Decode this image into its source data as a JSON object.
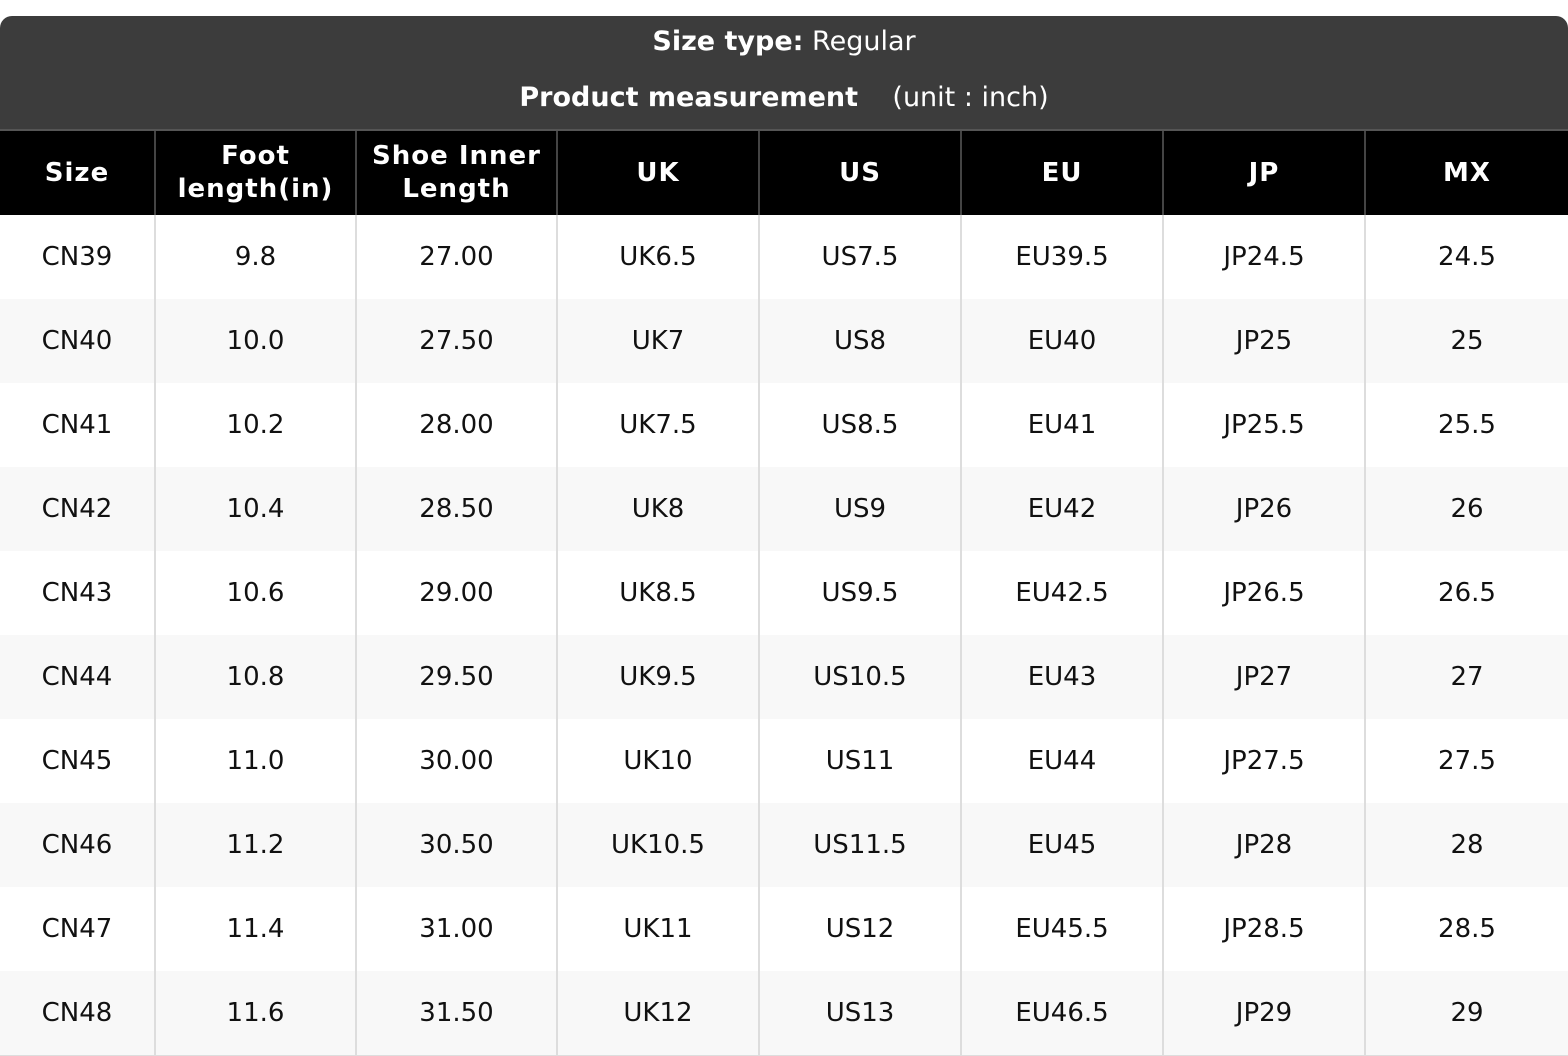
{
  "header": {
    "size_type_label": "Size type:",
    "size_type": "Regular",
    "measurement": "Product measurement",
    "unit": "(unit : inch)"
  },
  "table": {
    "columns": [
      "Size",
      "Foot length(in)",
      "Shoe Inner Length",
      "UK",
      "US",
      "EU",
      "JP",
      "MX"
    ],
    "rows": [
      [
        "CN39",
        "9.8",
        "27.00",
        "UK6.5",
        "US7.5",
        "EU39.5",
        "JP24.5",
        "24.5"
      ],
      [
        "CN40",
        "10.0",
        "27.50",
        "UK7",
        "US8",
        "EU40",
        "JP25",
        "25"
      ],
      [
        "CN41",
        "10.2",
        "28.00",
        "UK7.5",
        "US8.5",
        "EU41",
        "JP25.5",
        "25.5"
      ],
      [
        "CN42",
        "10.4",
        "28.50",
        "UK8",
        "US9",
        "EU42",
        "JP26",
        "26"
      ],
      [
        "CN43",
        "10.6",
        "29.00",
        "UK8.5",
        "US9.5",
        "EU42.5",
        "JP26.5",
        "26.5"
      ],
      [
        "CN44",
        "10.8",
        "29.50",
        "UK9.5",
        "US10.5",
        "EU43",
        "JP27",
        "27"
      ],
      [
        "CN45",
        "11.0",
        "30.00",
        "UK10",
        "US11",
        "EU44",
        "JP27.5",
        "27.5"
      ],
      [
        "CN46",
        "11.2",
        "30.50",
        "UK10.5",
        "US11.5",
        "EU45",
        "JP28",
        "28"
      ],
      [
        "CN47",
        "11.4",
        "31.00",
        "UK11",
        "US12",
        "EU45.5",
        "JP28.5",
        "28.5"
      ],
      [
        "CN48",
        "11.6",
        "31.50",
        "UK12",
        "US13",
        "EU46.5",
        "JP29",
        "29"
      ]
    ]
  }
}
